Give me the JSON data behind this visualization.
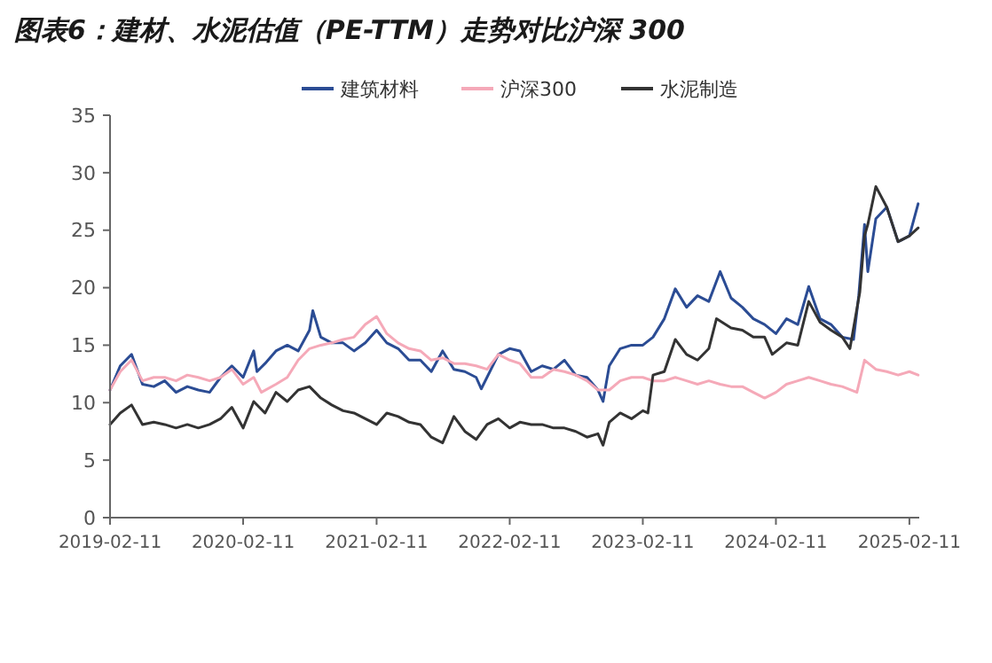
{
  "chart_data": {
    "type": "line",
    "title": "图表6：建材、水泥估值（PE-TTM）走势对比沪深 300",
    "xlim": [
      "2019-02-11",
      "2025-03-10"
    ],
    "xticks": [
      {
        "value": "2019-02-11",
        "label": "2019-02-11"
      },
      {
        "value": "2020-02-11",
        "label": "2020-02-11"
      },
      {
        "value": "2021-02-11",
        "label": "2021-02-11"
      },
      {
        "value": "2022-02-11",
        "label": "2022-02-11"
      },
      {
        "value": "2023-02-11",
        "label": "2023-02-11"
      },
      {
        "value": "2024-02-11",
        "label": "2024-02-11"
      },
      {
        "value": "2025-02-11",
        "label": "2025-02-11"
      }
    ],
    "ylim": [
      0,
      35
    ],
    "yticks": [
      0,
      5,
      10,
      15,
      20,
      25,
      30,
      35
    ],
    "grid": false,
    "legend": "top",
    "line_style": "solid",
    "marker": "none",
    "series": [
      {
        "name": "建筑材料",
        "color": "#2b4c94",
        "x": [
          "2019-02-11",
          "2019-03-11",
          "2019-04-11",
          "2019-05-11",
          "2019-06-11",
          "2019-07-11",
          "2019-08-11",
          "2019-09-11",
          "2019-10-11",
          "2019-11-11",
          "2019-12-11",
          "2020-01-11",
          "2020-02-11",
          "2020-03-11",
          "2020-03-20",
          "2020-04-11",
          "2020-05-11",
          "2020-06-11",
          "2020-07-11",
          "2020-08-11",
          "2020-08-20",
          "2020-09-11",
          "2020-10-11",
          "2020-11-11",
          "2020-12-11",
          "2021-01-11",
          "2021-02-11",
          "2021-03-11",
          "2021-04-11",
          "2021-05-11",
          "2021-06-11",
          "2021-07-11",
          "2021-08-11",
          "2021-09-11",
          "2021-10-11",
          "2021-11-11",
          "2021-11-25",
          "2022-01-11",
          "2022-02-11",
          "2022-03-11",
          "2022-04-11",
          "2022-05-11",
          "2022-06-11",
          "2022-07-11",
          "2022-08-11",
          "2022-09-11",
          "2022-10-11",
          "2022-10-25",
          "2022-11-11",
          "2022-12-11",
          "2023-01-11",
          "2023-02-11",
          "2023-03-11",
          "2023-04-11",
          "2023-05-11",
          "2023-06-11",
          "2023-07-11",
          "2023-08-11",
          "2023-09-11",
          "2023-10-11",
          "2023-11-11",
          "2023-12-11",
          "2024-01-11",
          "2024-02-11",
          "2024-03-11",
          "2024-04-11",
          "2024-05-11",
          "2024-06-11",
          "2024-07-11",
          "2024-08-11",
          "2024-09-11",
          "2024-09-25",
          "2024-10-11",
          "2024-10-20",
          "2024-11-11",
          "2024-12-11",
          "2025-01-11",
          "2025-02-11",
          "2025-03-07"
        ],
        "values": [
          11.1,
          13.2,
          14.2,
          11.6,
          11.4,
          11.9,
          10.9,
          11.4,
          11.1,
          10.9,
          12.2,
          13.2,
          12.2,
          14.5,
          12.7,
          13.4,
          14.5,
          15.0,
          14.5,
          16.3,
          18.0,
          15.7,
          15.2,
          15.2,
          14.5,
          15.2,
          16.3,
          15.2,
          14.7,
          13.7,
          13.7,
          12.7,
          14.5,
          12.9,
          12.7,
          12.2,
          11.2,
          14.2,
          14.7,
          14.5,
          12.7,
          13.2,
          12.9,
          13.7,
          12.4,
          12.2,
          11.1,
          10.1,
          13.2,
          14.7,
          15.0,
          15.0,
          15.7,
          17.3,
          19.9,
          18.3,
          19.3,
          18.8,
          21.4,
          19.1,
          18.3,
          17.3,
          16.8,
          16.0,
          17.3,
          16.8,
          20.1,
          17.3,
          16.8,
          15.7,
          15.5,
          19.3,
          25.5,
          21.4,
          26.0,
          27.0,
          24.0,
          24.5,
          27.3
        ]
      },
      {
        "name": "沪深300",
        "color": "#f5a9b8",
        "x": [
          "2019-02-11",
          "2019-03-11",
          "2019-04-11",
          "2019-05-11",
          "2019-06-11",
          "2019-07-11",
          "2019-08-11",
          "2019-09-11",
          "2019-10-11",
          "2019-11-11",
          "2019-12-11",
          "2020-01-11",
          "2020-02-11",
          "2020-03-11",
          "2020-04-01",
          "2020-05-11",
          "2020-06-11",
          "2020-07-11",
          "2020-08-11",
          "2020-09-11",
          "2020-10-11",
          "2020-11-11",
          "2020-12-11",
          "2021-01-11",
          "2021-02-11",
          "2021-03-11",
          "2021-04-11",
          "2021-05-11",
          "2021-06-11",
          "2021-07-11",
          "2021-08-11",
          "2021-09-11",
          "2021-10-11",
          "2021-11-11",
          "2021-12-11",
          "2022-01-11",
          "2022-02-11",
          "2022-03-11",
          "2022-04-11",
          "2022-05-11",
          "2022-06-11",
          "2022-07-11",
          "2022-08-11",
          "2022-09-11",
          "2022-10-11",
          "2022-11-11",
          "2022-12-11",
          "2023-01-11",
          "2023-02-11",
          "2023-03-11",
          "2023-04-11",
          "2023-05-11",
          "2023-06-11",
          "2023-07-11",
          "2023-08-11",
          "2023-09-11",
          "2023-10-11",
          "2023-11-11",
          "2023-12-11",
          "2024-01-11",
          "2024-02-11",
          "2024-03-11",
          "2024-04-11",
          "2024-05-11",
          "2024-06-11",
          "2024-07-11",
          "2024-08-11",
          "2024-09-20",
          "2024-10-11",
          "2024-11-11",
          "2024-12-11",
          "2025-01-11",
          "2025-02-11",
          "2025-03-07"
        ],
        "values": [
          11.1,
          12.7,
          13.7,
          11.9,
          12.2,
          12.2,
          11.9,
          12.4,
          12.2,
          11.9,
          12.2,
          12.9,
          11.6,
          12.2,
          10.9,
          11.6,
          12.2,
          13.7,
          14.7,
          15.0,
          15.2,
          15.5,
          15.7,
          16.8,
          17.5,
          16.0,
          15.2,
          14.7,
          14.5,
          13.7,
          13.9,
          13.4,
          13.4,
          13.2,
          12.9,
          14.2,
          13.7,
          13.4,
          12.2,
          12.2,
          12.9,
          12.7,
          12.4,
          11.9,
          11.1,
          11.1,
          11.9,
          12.2,
          12.2,
          11.9,
          11.9,
          12.2,
          11.9,
          11.6,
          11.9,
          11.6,
          11.4,
          11.4,
          10.9,
          10.4,
          10.9,
          11.6,
          11.9,
          12.2,
          11.9,
          11.6,
          11.4,
          10.9,
          13.7,
          12.9,
          12.7,
          12.4,
          12.7,
          12.4
        ]
      },
      {
        "name": "水泥制造",
        "color": "#333333",
        "x": [
          "2019-02-11",
          "2019-03-11",
          "2019-04-11",
          "2019-05-11",
          "2019-06-11",
          "2019-07-11",
          "2019-08-11",
          "2019-09-11",
          "2019-10-11",
          "2019-11-11",
          "2019-12-11",
          "2020-01-11",
          "2020-02-11",
          "2020-03-11",
          "2020-04-11",
          "2020-05-11",
          "2020-06-11",
          "2020-07-11",
          "2020-08-11",
          "2020-09-11",
          "2020-10-11",
          "2020-11-11",
          "2020-12-11",
          "2021-01-11",
          "2021-02-11",
          "2021-03-11",
          "2021-04-11",
          "2021-05-11",
          "2021-06-11",
          "2021-07-11",
          "2021-08-11",
          "2021-09-11",
          "2021-10-11",
          "2021-11-11",
          "2021-12-11",
          "2022-01-11",
          "2022-02-11",
          "2022-03-11",
          "2022-04-11",
          "2022-05-11",
          "2022-06-11",
          "2022-07-11",
          "2022-08-11",
          "2022-09-11",
          "2022-10-11",
          "2022-10-25",
          "2022-11-11",
          "2022-12-11",
          "2023-01-11",
          "2023-02-11",
          "2023-02-25",
          "2023-03-11",
          "2023-04-11",
          "2023-05-11",
          "2023-06-11",
          "2023-07-11",
          "2023-08-11",
          "2023-09-01",
          "2023-10-11",
          "2023-11-11",
          "2023-12-11",
          "2024-01-11",
          "2024-02-01",
          "2024-03-11",
          "2024-04-11",
          "2024-05-11",
          "2024-06-11",
          "2024-07-11",
          "2024-08-11",
          "2024-09-01",
          "2024-09-28",
          "2024-10-11",
          "2024-10-20",
          "2024-11-11",
          "2024-12-11",
          "2025-01-11",
          "2025-02-11",
          "2025-03-07"
        ],
        "values": [
          8.1,
          9.1,
          9.8,
          8.1,
          8.3,
          8.1,
          7.8,
          8.1,
          7.8,
          8.1,
          8.6,
          9.6,
          7.8,
          10.1,
          9.1,
          10.9,
          10.1,
          11.1,
          11.4,
          10.4,
          9.8,
          9.3,
          9.1,
          8.6,
          8.1,
          9.1,
          8.8,
          8.3,
          8.1,
          7.0,
          6.5,
          8.8,
          7.5,
          6.8,
          8.1,
          8.6,
          7.8,
          8.3,
          8.1,
          8.1,
          7.8,
          7.8,
          7.5,
          7.0,
          7.3,
          6.3,
          8.3,
          9.1,
          8.6,
          9.3,
          9.1,
          12.4,
          12.7,
          15.5,
          14.2,
          13.7,
          14.7,
          17.3,
          16.5,
          16.3,
          15.7,
          15.7,
          14.2,
          15.2,
          15.0,
          18.8,
          17.0,
          16.3,
          15.7,
          14.7,
          19.6,
          24.5,
          25.5,
          28.8,
          27.0,
          24.0,
          24.5,
          25.2
        ]
      }
    ]
  }
}
